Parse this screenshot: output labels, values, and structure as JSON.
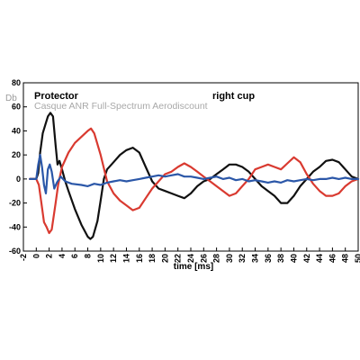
{
  "chart_data": {
    "type": "line",
    "title_left": "Protector",
    "title_right": "right cup",
    "subtitle": "Casque ANR Full-Spectrum Aerodiscount",
    "xlabel": "time [ms]",
    "ylabel": "Db",
    "xlim": [
      -2,
      50
    ],
    "ylim": [
      -60,
      80
    ],
    "x_ticks": [
      -2,
      0,
      2,
      4,
      6,
      8,
      10,
      12,
      14,
      16,
      18,
      20,
      22,
      24,
      26,
      28,
      30,
      32,
      34,
      36,
      38,
      40,
      42,
      44,
      46,
      48,
      50
    ],
    "y_ticks": [
      -60,
      -40,
      -20,
      0,
      20,
      40,
      60,
      80
    ],
    "grid": false,
    "series": [
      {
        "color": "#111111",
        "points": [
          [
            -1,
            0
          ],
          [
            0,
            0
          ],
          [
            0.3,
            5
          ],
          [
            0.6,
            22
          ],
          [
            1,
            38
          ],
          [
            1.4,
            45
          ],
          [
            1.8,
            52
          ],
          [
            2.2,
            55
          ],
          [
            2.6,
            52
          ],
          [
            3,
            28
          ],
          [
            3.3,
            12
          ],
          [
            3.6,
            15
          ],
          [
            4,
            8
          ],
          [
            4.5,
            -2
          ],
          [
            5,
            -10
          ],
          [
            6,
            -25
          ],
          [
            7,
            -38
          ],
          [
            8,
            -48
          ],
          [
            8.4,
            -50
          ],
          [
            8.8,
            -48
          ],
          [
            9.5,
            -35
          ],
          [
            10,
            -18
          ],
          [
            10.5,
            0
          ],
          [
            11,
            8
          ],
          [
            12,
            14
          ],
          [
            13,
            20
          ],
          [
            14,
            24
          ],
          [
            15,
            26
          ],
          [
            16,
            22
          ],
          [
            17,
            10
          ],
          [
            18,
            -2
          ],
          [
            19,
            -8
          ],
          [
            20,
            -10
          ],
          [
            21,
            -12
          ],
          [
            22,
            -14
          ],
          [
            23,
            -16
          ],
          [
            24,
            -12
          ],
          [
            25,
            -6
          ],
          [
            26,
            -2
          ],
          [
            27,
            0
          ],
          [
            28,
            4
          ],
          [
            29,
            8
          ],
          [
            30,
            12
          ],
          [
            31,
            12
          ],
          [
            32,
            10
          ],
          [
            33,
            6
          ],
          [
            34,
            0
          ],
          [
            35,
            -6
          ],
          [
            36,
            -10
          ],
          [
            37,
            -14
          ],
          [
            38,
            -20
          ],
          [
            39,
            -20
          ],
          [
            40,
            -14
          ],
          [
            41,
            -6
          ],
          [
            42,
            0
          ],
          [
            43,
            6
          ],
          [
            44,
            10
          ],
          [
            45,
            15
          ],
          [
            46,
            16
          ],
          [
            47,
            14
          ],
          [
            48,
            8
          ],
          [
            49,
            2
          ],
          [
            50,
            0
          ]
        ]
      },
      {
        "color": "#d93a30",
        "points": [
          [
            -1,
            0
          ],
          [
            0,
            0
          ],
          [
            0.4,
            -5
          ],
          [
            0.8,
            -20
          ],
          [
            1.2,
            -36
          ],
          [
            1.6,
            -40
          ],
          [
            2,
            -45
          ],
          [
            2.4,
            -42
          ],
          [
            3,
            -20
          ],
          [
            3.4,
            -5
          ],
          [
            4,
            10
          ],
          [
            5,
            22
          ],
          [
            6,
            30
          ],
          [
            7,
            35
          ],
          [
            8,
            40
          ],
          [
            8.5,
            42
          ],
          [
            9,
            38
          ],
          [
            10,
            20
          ],
          [
            11,
            -2
          ],
          [
            12,
            -12
          ],
          [
            13,
            -18
          ],
          [
            14,
            -22
          ],
          [
            15,
            -26
          ],
          [
            16,
            -24
          ],
          [
            17,
            -16
          ],
          [
            18,
            -8
          ],
          [
            19,
            -2
          ],
          [
            20,
            4
          ],
          [
            21,
            6
          ],
          [
            22,
            10
          ],
          [
            23,
            13
          ],
          [
            24,
            10
          ],
          [
            25,
            6
          ],
          [
            26,
            2
          ],
          [
            27,
            -2
          ],
          [
            28,
            -6
          ],
          [
            29,
            -10
          ],
          [
            30,
            -14
          ],
          [
            31,
            -12
          ],
          [
            32,
            -6
          ],
          [
            33,
            0
          ],
          [
            34,
            8
          ],
          [
            35,
            10
          ],
          [
            36,
            12
          ],
          [
            37,
            10
          ],
          [
            38,
            8
          ],
          [
            39,
            13
          ],
          [
            40,
            18
          ],
          [
            41,
            14
          ],
          [
            42,
            4
          ],
          [
            43,
            -4
          ],
          [
            44,
            -10
          ],
          [
            45,
            -14
          ],
          [
            46,
            -14
          ],
          [
            47,
            -12
          ],
          [
            48,
            -6
          ],
          [
            49,
            -2
          ],
          [
            50,
            0
          ]
        ]
      },
      {
        "color": "#2b57a8",
        "points": [
          [
            -1,
            0
          ],
          [
            0,
            0
          ],
          [
            0.3,
            12
          ],
          [
            0.6,
            20
          ],
          [
            0.9,
            10
          ],
          [
            1.2,
            -5
          ],
          [
            1.5,
            -12
          ],
          [
            1.8,
            8
          ],
          [
            2.1,
            12
          ],
          [
            2.4,
            6
          ],
          [
            2.8,
            -8
          ],
          [
            3.2,
            -3
          ],
          [
            3.8,
            2
          ],
          [
            4.5,
            -2
          ],
          [
            5.5,
            -4
          ],
          [
            7,
            -5
          ],
          [
            8,
            -6
          ],
          [
            9,
            -4
          ],
          [
            10,
            -5
          ],
          [
            11,
            -3
          ],
          [
            12,
            -2
          ],
          [
            13,
            -1
          ],
          [
            14,
            -2
          ],
          [
            15,
            -1
          ],
          [
            16,
            0
          ],
          [
            17,
            1
          ],
          [
            18,
            2
          ],
          [
            19,
            3
          ],
          [
            20,
            2
          ],
          [
            21,
            3
          ],
          [
            22,
            4
          ],
          [
            23,
            2
          ],
          [
            24,
            2
          ],
          [
            25,
            1
          ],
          [
            26,
            0
          ],
          [
            27,
            1
          ],
          [
            28,
            2
          ],
          [
            29,
            0
          ],
          [
            30,
            1
          ],
          [
            31,
            -1
          ],
          [
            32,
            0
          ],
          [
            33,
            -2
          ],
          [
            34,
            -1
          ],
          [
            35,
            -2
          ],
          [
            36,
            -3
          ],
          [
            37,
            -2
          ],
          [
            38,
            -3
          ],
          [
            39,
            -1
          ],
          [
            40,
            -2
          ],
          [
            41,
            -1
          ],
          [
            42,
            0
          ],
          [
            43,
            -1
          ],
          [
            44,
            0
          ],
          [
            45,
            0
          ],
          [
            46,
            1
          ],
          [
            47,
            0
          ],
          [
            48,
            1
          ],
          [
            49,
            0
          ],
          [
            50,
            0
          ]
        ]
      }
    ]
  }
}
